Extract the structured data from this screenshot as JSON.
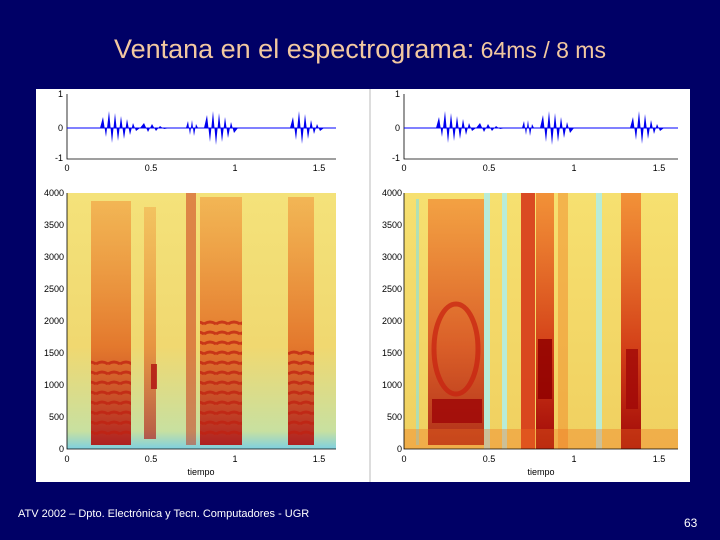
{
  "slide": {
    "title_main": "Ventana en el espectrograma:",
    "title_sub": " 64ms / 8 ms",
    "footer": "ATV 2002 – Dpto. Electrónica y Tecn. Computadores - UGR",
    "page_number": "63"
  },
  "panels": [
    {
      "window": "64ms",
      "waveform": {
        "yticks": [
          "1",
          "0",
          "-1"
        ],
        "xticks": [
          "0",
          "0.5",
          "1",
          "1.5"
        ]
      },
      "spectrogram": {
        "yticks": [
          "4000",
          "3500",
          "3000",
          "2500",
          "2000",
          "1500",
          "1000",
          "500",
          "0"
        ],
        "xticks": [
          "0",
          "0.5",
          "1",
          "1.5"
        ],
        "xlabel": "tiempo"
      }
    },
    {
      "window": "8 ms",
      "waveform": {
        "yticks": [
          "1",
          "0",
          "-1"
        ],
        "xticks": [
          "0",
          "0.5",
          "1",
          "1.5"
        ]
      },
      "spectrogram": {
        "yticks": [
          "4000",
          "3500",
          "3000",
          "2500",
          "2000",
          "1500",
          "1000",
          "500",
          "0"
        ],
        "xticks": [
          "0",
          "0.5",
          "1",
          "1.5"
        ],
        "xlabel": "tiempo"
      }
    }
  ]
}
